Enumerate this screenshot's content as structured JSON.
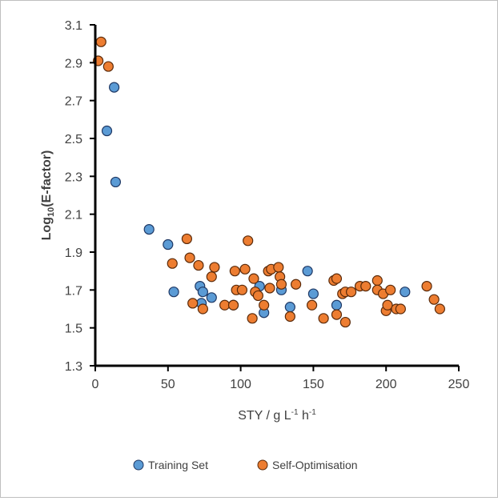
{
  "chart_data": {
    "type": "scatter",
    "title": "",
    "xlabel": "STY / g L⁻¹ h⁻¹",
    "ylabel": "Log₁₀(E-factor)",
    "xlim": [
      0,
      250
    ],
    "ylim": [
      1.3,
      3.1
    ],
    "xticks": [
      "0",
      "50",
      "100",
      "150",
      "200",
      "250"
    ],
    "yticks": [
      "1.3",
      "1.5",
      "1.7",
      "1.9",
      "2.1",
      "2.3",
      "2.5",
      "2.7",
      "2.9",
      "3.1"
    ],
    "grid": false,
    "legend_position": "bottom",
    "series": [
      {
        "name": "Training Set",
        "color": "#5b9bd5",
        "points": [
          [
            8,
            2.54
          ],
          [
            13,
            2.77
          ],
          [
            14,
            2.27
          ],
          [
            37,
            2.02
          ],
          [
            50,
            1.94
          ],
          [
            54,
            1.69
          ],
          [
            72,
            1.72
          ],
          [
            74,
            1.69
          ],
          [
            73,
            1.63
          ],
          [
            80,
            1.66
          ],
          [
            95,
            1.62
          ],
          [
            113,
            1.72
          ],
          [
            116,
            1.58
          ],
          [
            128,
            1.7
          ],
          [
            134,
            1.61
          ],
          [
            146,
            1.8
          ],
          [
            150,
            1.68
          ],
          [
            166,
            1.62
          ],
          [
            213,
            1.69
          ]
        ]
      },
      {
        "name": "Self-Optimisation",
        "color": "#ed7d31",
        "points": [
          [
            2,
            2.91
          ],
          [
            4,
            3.01
          ],
          [
            9,
            2.88
          ],
          [
            53,
            1.84
          ],
          [
            63,
            1.97
          ],
          [
            65,
            1.87
          ],
          [
            67,
            1.63
          ],
          [
            71,
            1.83
          ],
          [
            74,
            1.6
          ],
          [
            80,
            1.77
          ],
          [
            82,
            1.82
          ],
          [
            89,
            1.62
          ],
          [
            95,
            1.62
          ],
          [
            96,
            1.8
          ],
          [
            97,
            1.7
          ],
          [
            101,
            1.7
          ],
          [
            103,
            1.81
          ],
          [
            105,
            1.96
          ],
          [
            108,
            1.55
          ],
          [
            109,
            1.76
          ],
          [
            110,
            1.69
          ],
          [
            112,
            1.67
          ],
          [
            116,
            1.62
          ],
          [
            119,
            1.8
          ],
          [
            120,
            1.71
          ],
          [
            121,
            1.81
          ],
          [
            126,
            1.82
          ],
          [
            127,
            1.77
          ],
          [
            128,
            1.73
          ],
          [
            134,
            1.56
          ],
          [
            138,
            1.73
          ],
          [
            149,
            1.62
          ],
          [
            157,
            1.55
          ],
          [
            164,
            1.75
          ],
          [
            166,
            1.76
          ],
          [
            166,
            1.57
          ],
          [
            170,
            1.68
          ],
          [
            172,
            1.53
          ],
          [
            172,
            1.69
          ],
          [
            176,
            1.69
          ],
          [
            182,
            1.72
          ],
          [
            186,
            1.72
          ],
          [
            194,
            1.75
          ],
          [
            194,
            1.7
          ],
          [
            198,
            1.68
          ],
          [
            200,
            1.59
          ],
          [
            201,
            1.62
          ],
          [
            203,
            1.7
          ],
          [
            207,
            1.6
          ],
          [
            210,
            1.6
          ],
          [
            228,
            1.72
          ],
          [
            233,
            1.65
          ],
          [
            237,
            1.6
          ]
        ]
      }
    ]
  }
}
